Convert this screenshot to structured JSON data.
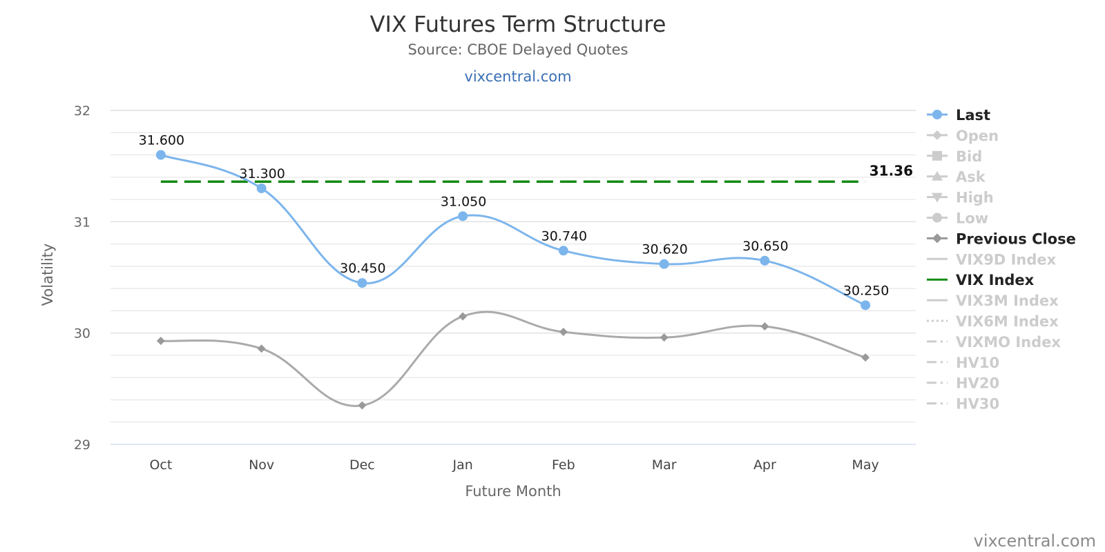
{
  "chart_data": {
    "type": "line",
    "title": "VIX Futures Term Structure",
    "subtitle": "Source: CBOE Delayed Quotes",
    "link_text": "vixcentral.com",
    "credit": "vixcentral.com",
    "xlabel": "Future Month",
    "ylabel": "Volatility",
    "categories": [
      "Oct",
      "Nov",
      "Dec",
      "Jan",
      "Feb",
      "Mar",
      "Apr",
      "May"
    ],
    "ylim": [
      29,
      32
    ],
    "yticks": [
      29,
      30,
      31,
      32
    ],
    "minor_step": 0.2,
    "grid": true,
    "legend_position": "right",
    "series": [
      {
        "name": "Last",
        "values": [
          31.6,
          31.3,
          30.45,
          31.05,
          30.74,
          30.62,
          30.65,
          30.25
        ],
        "labels": [
          "31.600",
          "31.300",
          "30.450",
          "31.050",
          "30.740",
          "30.620",
          "30.650",
          "30.250"
        ],
        "color": "#7cb5ec",
        "marker": "circle"
      },
      {
        "name": "Previous Close",
        "values": [
          29.93,
          29.86,
          29.35,
          30.15,
          30.01,
          29.96,
          30.06,
          29.78
        ],
        "color": "#aaaaaa",
        "marker": "diamond"
      },
      {
        "name": "VIX Index",
        "value": 31.36,
        "label": "31.36",
        "color": "#138a13",
        "style": "dashed"
      }
    ],
    "legend": [
      {
        "name": "Last",
        "active": true,
        "symbol": "circle",
        "color": "#7cb5ec"
      },
      {
        "name": "Open",
        "active": false,
        "symbol": "diamond",
        "color": "#cccccc"
      },
      {
        "name": "Bid",
        "active": false,
        "symbol": "square",
        "color": "#cccccc"
      },
      {
        "name": "Ask",
        "active": false,
        "symbol": "triangle",
        "color": "#cccccc"
      },
      {
        "name": "High",
        "active": false,
        "symbol": "triangle-down",
        "color": "#cccccc"
      },
      {
        "name": "Low",
        "active": false,
        "symbol": "circle",
        "color": "#cccccc"
      },
      {
        "name": "Previous Close",
        "active": true,
        "symbol": "diamond",
        "color": "#999999"
      },
      {
        "name": "VIX9D Index",
        "active": false,
        "symbol": "solid",
        "color": "#cccccc"
      },
      {
        "name": "VIX Index",
        "active": true,
        "symbol": "solid",
        "color": "#138a13"
      },
      {
        "name": "VIX3M Index",
        "active": false,
        "symbol": "solid",
        "color": "#cccccc"
      },
      {
        "name": "VIX6M Index",
        "active": false,
        "symbol": "dotted",
        "color": "#cccccc"
      },
      {
        "name": "VIXMO Index",
        "active": false,
        "symbol": "dashdot",
        "color": "#cccccc"
      },
      {
        "name": "HV10",
        "active": false,
        "symbol": "dashdot",
        "color": "#cccccc"
      },
      {
        "name": "HV20",
        "active": false,
        "symbol": "dashdot",
        "color": "#cccccc"
      },
      {
        "name": "HV30",
        "active": false,
        "symbol": "dashdot",
        "color": "#cccccc"
      }
    ]
  }
}
